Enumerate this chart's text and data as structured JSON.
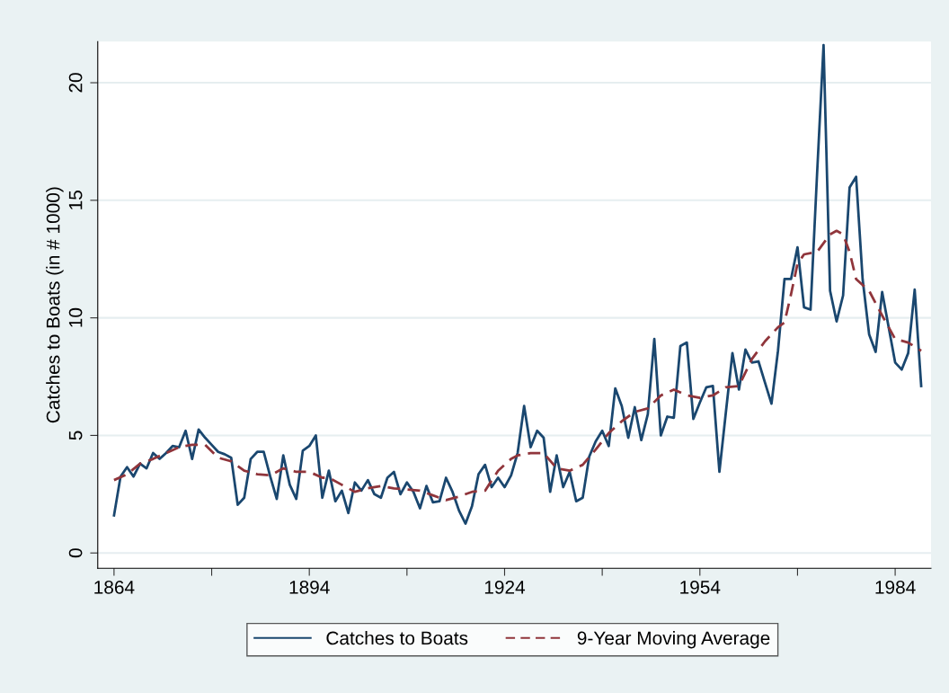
{
  "chart_data": {
    "type": "line",
    "ylabel": "Catches to Boats (in # 1000)",
    "xlim": [
      1861.5,
      1989.5
    ],
    "ylim": [
      -0.65,
      21.75
    ],
    "xticks": [
      1864,
      {
        "value": 1879,
        "label": null
      },
      1894,
      {
        "value": 1909,
        "label": null
      },
      1924,
      {
        "value": 1939,
        "label": null
      },
      1954,
      {
        "value": 1969,
        "label": null
      },
      1984
    ],
    "yticks": [
      0,
      5,
      10,
      15,
      20
    ],
    "grid": "y",
    "legend": "bottom",
    "series": [
      {
        "name": "Catches to Boats",
        "color": "#1a476f",
        "line_style": "solid",
        "x": [
          1864,
          1865,
          1866,
          1867,
          1868,
          1869,
          1870,
          1871,
          1872,
          1873,
          1874,
          1875,
          1876,
          1877,
          1878,
          1879,
          1880,
          1881,
          1882,
          1883,
          1884,
          1885,
          1886,
          1887,
          1888,
          1889,
          1890,
          1891,
          1892,
          1893,
          1894,
          1895,
          1896,
          1897,
          1898,
          1899,
          1900,
          1901,
          1902,
          1903,
          1904,
          1905,
          1906,
          1907,
          1908,
          1909,
          1910,
          1911,
          1912,
          1913,
          1914,
          1915,
          1916,
          1917,
          1918,
          1919,
          1920,
          1921,
          1922,
          1923,
          1924,
          1925,
          1926,
          1927,
          1928,
          1929,
          1930,
          1931,
          1932,
          1933,
          1934,
          1935,
          1936,
          1937,
          1938,
          1939,
          1940,
          1941,
          1942,
          1943,
          1944,
          1945,
          1946,
          1947,
          1948,
          1949,
          1950,
          1951,
          1952,
          1953,
          1954,
          1955,
          1956,
          1957,
          1958,
          1959,
          1960,
          1961,
          1962,
          1963,
          1964,
          1965,
          1966,
          1967,
          1968,
          1969,
          1970,
          1971,
          1972,
          1973,
          1974,
          1975,
          1976,
          1977,
          1978,
          1979,
          1980,
          1981,
          1982,
          1983,
          1984,
          1985,
          1986,
          1987,
          1988
        ],
        "values": [
          1.6,
          3.25,
          3.65,
          3.25,
          3.8,
          3.6,
          4.25,
          4.0,
          4.25,
          4.55,
          4.5,
          5.2,
          4.0,
          5.25,
          4.9,
          4.6,
          4.3,
          4.2,
          4.05,
          2.05,
          2.35,
          4.0,
          4.3,
          4.3,
          3.25,
          2.3,
          4.15,
          2.9,
          2.3,
          4.35,
          4.55,
          5.0,
          2.35,
          3.5,
          2.2,
          2.65,
          1.7,
          3.0,
          2.65,
          3.1,
          2.5,
          2.35,
          3.2,
          3.45,
          2.5,
          3.0,
          2.6,
          1.9,
          2.85,
          2.15,
          2.2,
          3.2,
          2.6,
          1.8,
          1.25,
          2.0,
          3.35,
          3.75,
          2.8,
          3.2,
          2.8,
          3.3,
          4.25,
          6.25,
          4.5,
          5.2,
          4.9,
          2.6,
          4.15,
          2.8,
          3.45,
          2.2,
          2.35,
          4.1,
          4.75,
          5.2,
          4.55,
          7.0,
          6.25,
          4.9,
          6.2,
          4.8,
          5.9,
          9.1,
          5.0,
          5.8,
          5.75,
          8.8,
          8.95,
          5.7,
          6.4,
          7.05,
          7.1,
          3.45,
          6.0,
          8.5,
          6.95,
          8.65,
          8.1,
          8.15,
          7.25,
          6.35,
          8.6,
          11.65,
          11.65,
          13.0,
          10.45,
          10.35,
          16.1,
          21.6,
          11.15,
          9.85,
          10.95,
          15.55,
          16.0,
          11.65,
          9.3,
          8.55,
          11.1,
          9.6,
          8.1,
          7.8,
          8.5,
          11.2,
          7.1
        ]
      },
      {
        "name": "9-Year Moving Average",
        "color": "#90353b",
        "line_style": "dashed",
        "x": [
          1864,
          1866,
          1868,
          1870,
          1872,
          1874,
          1876,
          1878,
          1880,
          1882,
          1884,
          1886,
          1888,
          1890,
          1892,
          1894,
          1896,
          1897,
          1899,
          1901,
          1903,
          1905,
          1907,
          1909,
          1911,
          1913,
          1915,
          1917,
          1919,
          1921,
          1923,
          1925,
          1926,
          1928,
          1930,
          1932,
          1934,
          1936,
          1938,
          1940,
          1942,
          1944,
          1946,
          1948,
          1950,
          1952,
          1954,
          1956,
          1958,
          1960,
          1962,
          1964,
          1966,
          1967,
          1968,
          1969,
          1970,
          1972,
          1974,
          1975,
          1976,
          1977,
          1978,
          1980,
          1982,
          1984,
          1986,
          1988
        ],
        "values": [
          3.1,
          3.35,
          3.8,
          4.0,
          4.25,
          4.5,
          4.6,
          4.6,
          4.05,
          3.9,
          3.5,
          3.35,
          3.3,
          3.6,
          3.45,
          3.45,
          3.2,
          3.2,
          2.9,
          2.6,
          2.75,
          2.85,
          2.75,
          2.7,
          2.65,
          2.45,
          2.25,
          2.4,
          2.6,
          2.65,
          3.5,
          4.0,
          4.15,
          4.25,
          4.25,
          3.6,
          3.5,
          3.75,
          4.4,
          5.1,
          5.6,
          6.0,
          6.15,
          6.7,
          6.95,
          6.7,
          6.6,
          6.7,
          7.05,
          7.1,
          8.25,
          9.0,
          9.6,
          9.8,
          11.0,
          12.3,
          12.7,
          12.8,
          13.55,
          13.7,
          13.55,
          12.8,
          11.65,
          11.15,
          10.1,
          9.1,
          8.95,
          8.6
        ]
      }
    ]
  }
}
